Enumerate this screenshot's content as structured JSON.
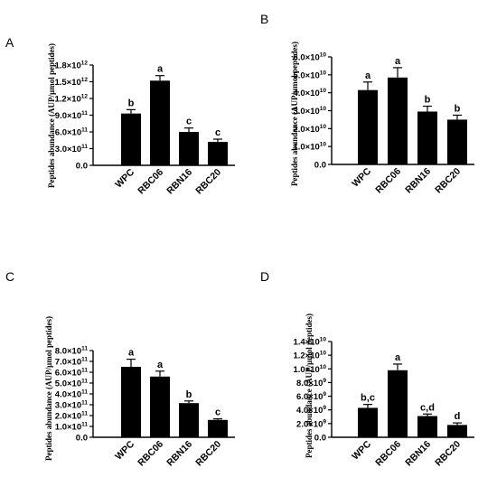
{
  "chart_data": [
    {
      "panel": "A",
      "type": "bar",
      "ylabel": "Peptides abundance (AUP/µmol peptides)",
      "categories": [
        "WPC",
        "RBC06",
        "RBN16",
        "RBC20"
      ],
      "values": [
        930000000000.0,
        1520000000000.0,
        600000000000.0,
        420000000000.0
      ],
      "errors": [
        70000000000.0,
        90000000000.0,
        70000000000.0,
        50000000000.0
      ],
      "significance": [
        "b",
        "a",
        "c",
        "c"
      ],
      "ylim": [
        0,
        1800000000000.0
      ],
      "yticks": [
        {
          "base": "0.0",
          "exp": ""
        },
        {
          "base": "3.0×10",
          "exp": "11"
        },
        {
          "base": "6.0×10",
          "exp": "11"
        },
        {
          "base": "9.0×10",
          "exp": "11"
        },
        {
          "base": "1.2×10",
          "exp": "12"
        },
        {
          "base": "1.5×10",
          "exp": "12"
        },
        {
          "base": "1.8×10",
          "exp": "12"
        }
      ]
    },
    {
      "panel": "B",
      "type": "bar",
      "ylabel": "Peptides abundance (AUP/µmol peptides)",
      "categories": [
        "WPC",
        "RBC06",
        "RBN16",
        "RBC20"
      ],
      "values": [
        41500000000.0,
        48500000000.0,
        29500000000.0,
        25000000000.0
      ],
      "errors": [
        4500000000.0,
        5500000000.0,
        3000000000.0,
        2500000000.0
      ],
      "significance": [
        "a",
        "a",
        "b",
        "b"
      ],
      "ylim": [
        0,
        60000000000.0
      ],
      "yticks": [
        {
          "base": "0.0",
          "exp": ""
        },
        {
          "base": "1.0×10",
          "exp": "10"
        },
        {
          "base": "2.0×10",
          "exp": "10"
        },
        {
          "base": "3.0×10",
          "exp": "10"
        },
        {
          "base": "4.0×10",
          "exp": "10"
        },
        {
          "base": "5.0×10",
          "exp": "10"
        },
        {
          "base": "6.0×10",
          "exp": "10"
        }
      ]
    },
    {
      "panel": "C",
      "type": "bar",
      "ylabel": "Peptides abundance (AUP/µmol peptides)",
      "categories": [
        "WPC",
        "RBC06",
        "RBN16",
        "RBC20"
      ],
      "values": [
        650000000000.0,
        560000000000.0,
        315000000000.0,
        160000000000.0
      ],
      "errors": [
        70000000000.0,
        50000000000.0,
        20000000000.0,
        10000000000.0
      ],
      "significance": [
        "a",
        "a",
        "b",
        "c"
      ],
      "ylim": [
        0,
        800000000000.0
      ],
      "yticks": [
        {
          "base": "0.0",
          "exp": ""
        },
        {
          "base": "1.0×10",
          "exp": "11"
        },
        {
          "base": "2.0×10",
          "exp": "11"
        },
        {
          "base": "3.0×10",
          "exp": "11"
        },
        {
          "base": "4.0×10",
          "exp": "11"
        },
        {
          "base": "5.0×10",
          "exp": "11"
        },
        {
          "base": "6.0×10",
          "exp": "11"
        },
        {
          "base": "7.0×10",
          "exp": "11"
        },
        {
          "base": "8.0×10",
          "exp": "11"
        }
      ]
    },
    {
      "panel": "D",
      "type": "bar",
      "ylabel": "Peptides abundance (AUP/µmol peptides)",
      "categories": [
        "WPC",
        "RBC06",
        "RBN16",
        "RBC20"
      ],
      "values": [
        4300000000.0,
        9800000000.0,
        3100000000.0,
        1800000000.0
      ],
      "errors": [
        500000000.0,
        900000000.0,
        300000000.0,
        300000000.0
      ],
      "significance": [
        "b,c",
        "a",
        "c,d",
        "d"
      ],
      "ylim": [
        0,
        14000000000.0
      ],
      "yticks": [
        {
          "base": "0.0",
          "exp": ""
        },
        {
          "base": "2.0×10",
          "exp": "9"
        },
        {
          "base": "4.0×10",
          "exp": "9"
        },
        {
          "base": "6.0×10",
          "exp": "9"
        },
        {
          "base": "8.0×10",
          "exp": "9"
        },
        {
          "base": "1.0×10",
          "exp": "10"
        },
        {
          "base": "1.2×10",
          "exp": "10"
        },
        {
          "base": "1.4×10",
          "exp": "10"
        }
      ]
    }
  ],
  "colors": {
    "bar": "#000000",
    "axis": "#000000",
    "background": "#ffffff"
  }
}
